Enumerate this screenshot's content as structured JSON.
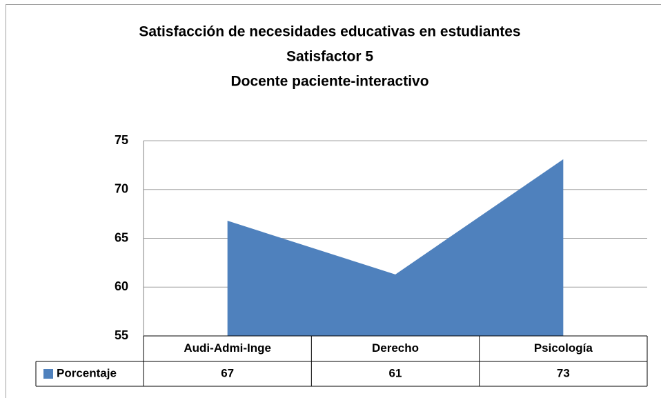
{
  "chart_data": {
    "type": "area",
    "title": [
      "Satisfacción de necesidades educativas en estudiantes",
      "Satisfactor 5",
      "Docente paciente-interactivo"
    ],
    "categories": [
      "Audi-Admi-Inge",
      "Derecho",
      "Psicología"
    ],
    "series": [
      {
        "name": "Porcentaje",
        "color": "#4f81bd",
        "values": [
          66.8,
          61.3,
          73.1
        ],
        "value_labels": [
          "67",
          "61",
          "73"
        ]
      }
    ],
    "ylim": [
      55,
      75
    ],
    "yticks": [
      55,
      60,
      65,
      70,
      75
    ],
    "grid": true,
    "data_table": true
  }
}
